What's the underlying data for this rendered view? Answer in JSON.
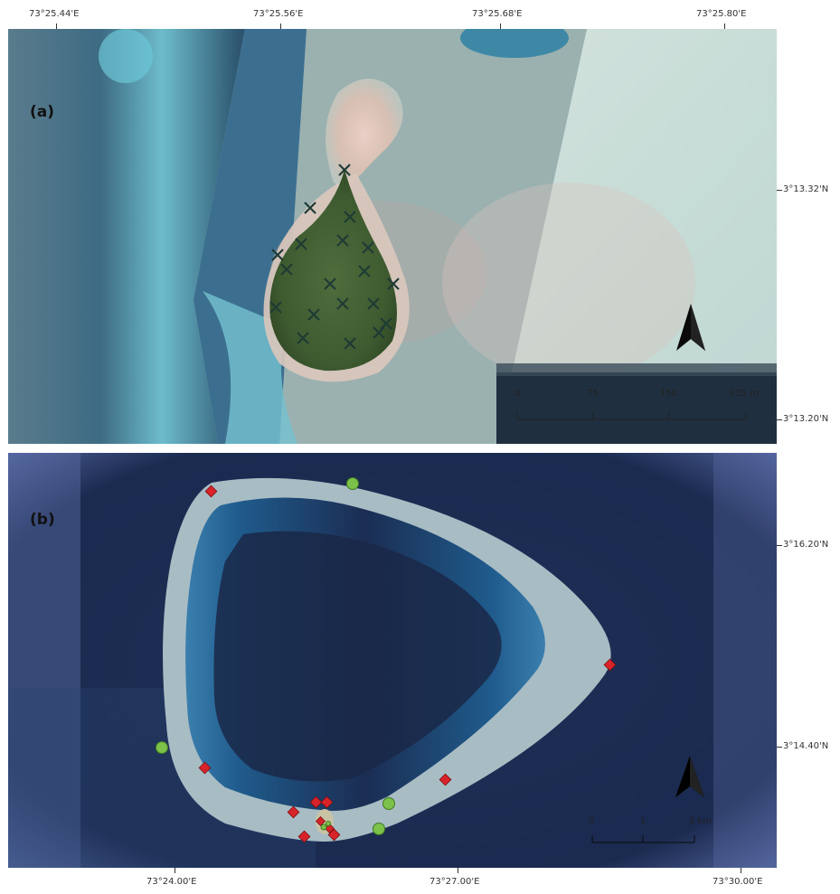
{
  "panel_a": {
    "label": "(a)",
    "top_longitudes": [
      "73°25.44'E",
      "73°25.56'E",
      "73°25.68'E",
      "73°25.80'E"
    ],
    "right_latitudes": [
      "3°13.32'N",
      "3°13.20'N"
    ],
    "scale": {
      "ticks": [
        "0",
        "75",
        "150"
      ],
      "end": "225 m"
    },
    "markers": {
      "type": "x",
      "color": "#1e3b35",
      "count": 19
    }
  },
  "panel_b": {
    "label": "(b)",
    "bottom_longitudes": [
      "73°24.00'E",
      "73°27.00'E",
      "73°30.00'E"
    ],
    "right_latitudes": [
      "3°16.20'N",
      "3°14.40'N"
    ],
    "scale": {
      "ticks": [
        "0",
        "1"
      ],
      "end": "2 km"
    },
    "markers": {
      "red": {
        "type": "diamond",
        "color": "#d8232a",
        "count": 11
      },
      "green": {
        "type": "circle",
        "color": "#7cc24a",
        "count": 6
      }
    }
  }
}
